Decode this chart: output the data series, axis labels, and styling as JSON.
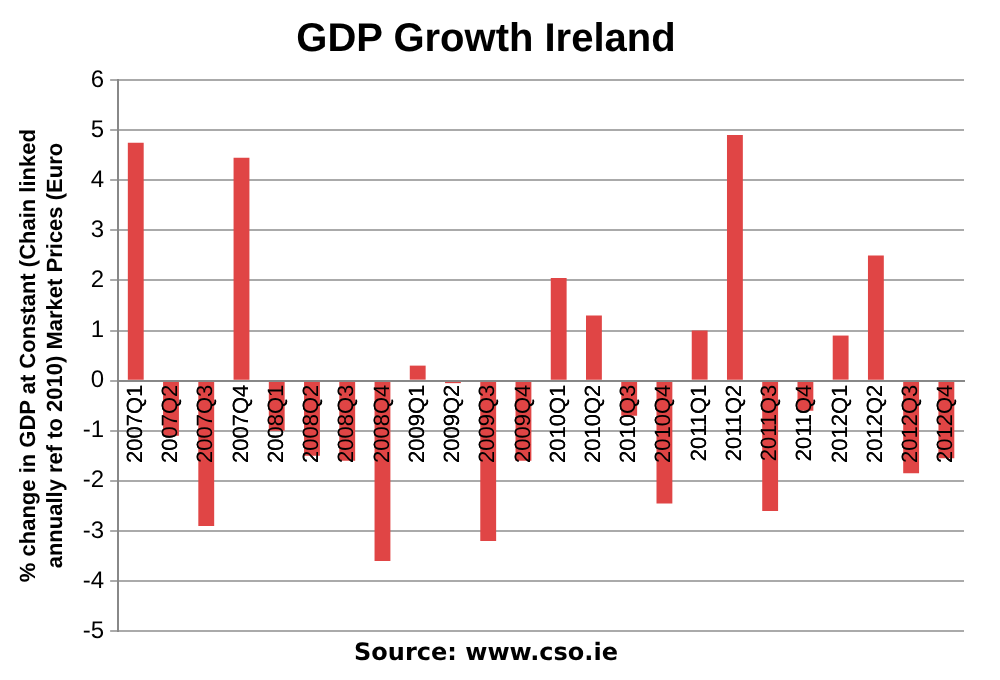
{
  "chart_data": {
    "type": "bar",
    "title": "GDP Growth Ireland",
    "ylabel": "% change in GDP at Constant (Chain linked annually ref to 2010) Market Prices (Euro",
    "categories": [
      "2007Q1",
      "2007Q2",
      "2007Q3",
      "2007Q4",
      "2008Q1",
      "2008Q2",
      "2008Q3",
      "2008Q4",
      "2009Q1",
      "2009Q2",
      "2009Q3",
      "2009Q4",
      "2010Q1",
      "2010Q2",
      "2010Q3",
      "2010Q4",
      "2011Q1",
      "2011Q2",
      "2011Q3",
      "2011Q4",
      "2012Q1",
      "2012Q2",
      "2012Q3",
      "2012Q4"
    ],
    "values": [
      4.75,
      -1.1,
      -2.9,
      4.45,
      -1.0,
      -1.5,
      -1.6,
      -3.6,
      0.3,
      -0.05,
      -3.2,
      -1.6,
      2.05,
      1.3,
      -0.7,
      -2.45,
      1.0,
      4.9,
      -2.6,
      -0.6,
      0.9,
      2.5,
      -1.85,
      -1.55
    ],
    "color": "#e04545",
    "ylim": [
      -5,
      6
    ],
    "yticks": [
      -5,
      -4,
      -3,
      -2,
      -1,
      0,
      1,
      2,
      3,
      4,
      5,
      6
    ],
    "grid": "y",
    "legend": false,
    "annotations": [
      "Source: www.cso.ie"
    ]
  }
}
